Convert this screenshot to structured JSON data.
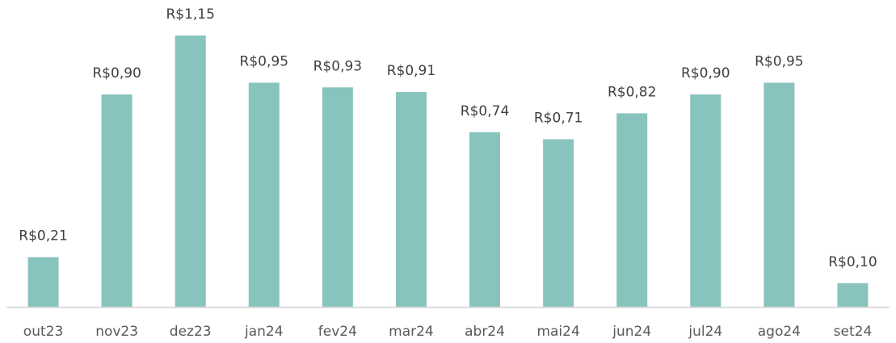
{
  "chart_data": {
    "type": "bar",
    "categories": [
      "out23",
      "nov23",
      "dez23",
      "jan24",
      "fev24",
      "mar24",
      "abr24",
      "mai24",
      "jun24",
      "jul24",
      "ago24",
      "set24"
    ],
    "values": [
      0.21,
      0.9,
      1.15,
      0.95,
      0.93,
      0.91,
      0.74,
      0.71,
      0.82,
      0.9,
      0.95,
      0.1
    ],
    "value_labels": [
      "R$0,21",
      "R$0,90",
      "R$1,15",
      "R$0,95",
      "R$0,93",
      "R$0,91",
      "R$0,74",
      "R$0,71",
      "R$0,82",
      "R$0,90",
      "R$0,95",
      "R$0,10"
    ],
    "color": "#88c4bd"
  }
}
